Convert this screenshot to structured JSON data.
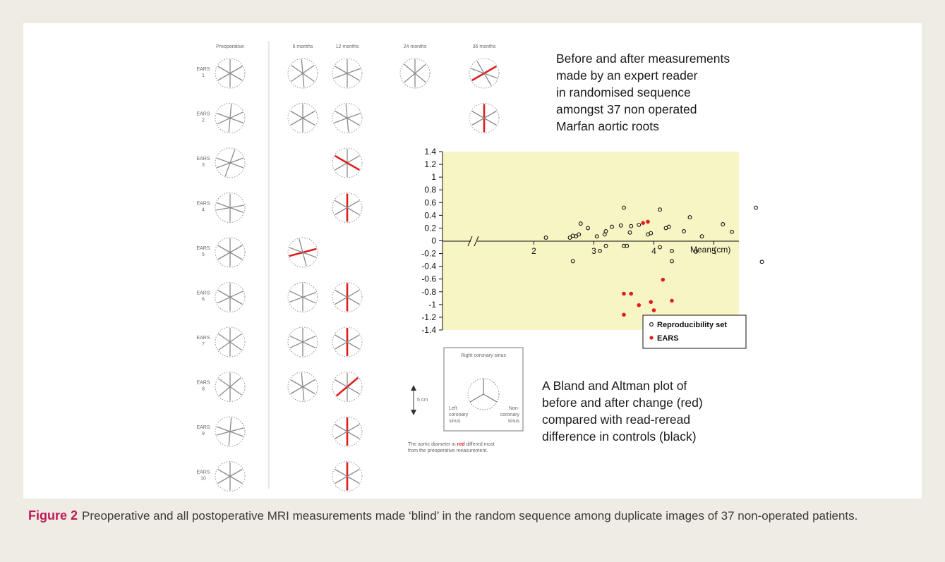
{
  "colors": {
    "highlight": "#dd1e1e",
    "spoke": "#8a8a8a",
    "plot_bg": "#f8f5c4",
    "accent": "#c0185a"
  },
  "grid": {
    "column_headers": [
      "Preoperative",
      "6 months",
      "12 months",
      "24 months",
      "36 months"
    ],
    "patients": [
      {
        "label_top": "EARS",
        "label_num": "1",
        "cells": [
          {
            "angles": [
              90,
              30,
              150
            ],
            "red": -1
          },
          {
            "angles": [
              95,
              35,
              145
            ],
            "red": -1
          },
          {
            "angles": [
              90,
              20,
              150
            ],
            "red": -1
          },
          {
            "angles": [
              90,
              40,
              140
            ],
            "red": -1
          },
          {
            "angles": [
              120,
              30,
              160
            ],
            "red": 1
          }
        ]
      },
      {
        "label_top": "EARS",
        "label_num": "2",
        "cells": [
          {
            "angles": [
              85,
              25,
              160
            ],
            "red": -1
          },
          {
            "angles": [
              90,
              30,
              150
            ],
            "red": -1
          },
          {
            "angles": [
              95,
              20,
              150
            ],
            "red": -1
          },
          null,
          {
            "angles": [
              90,
              30,
              150
            ],
            "red": 0
          }
        ]
      },
      {
        "label_top": "EARS",
        "label_num": "3",
        "cells": [
          {
            "angles": [
              70,
              20,
              160
            ],
            "red": -1
          },
          null,
          {
            "angles": [
              90,
              30,
              150
            ],
            "red": 2
          },
          null,
          null
        ]
      },
      {
        "label_top": "EARS",
        "label_num": "4",
        "cells": [
          {
            "angles": [
              90,
              10,
              160
            ],
            "red": -1
          },
          null,
          {
            "angles": [
              90,
              30,
              150
            ],
            "red": 0
          },
          null,
          null
        ]
      },
      {
        "label_top": "EARS",
        "label_num": "5",
        "cells": [
          {
            "angles": [
              90,
              30,
              150
            ],
            "red": -1
          },
          {
            "angles": [
              105,
              15,
              160
            ],
            "red": 1
          },
          null,
          null,
          null
        ]
      },
      {
        "label_top": "EARS",
        "label_num": "6",
        "cells": [
          {
            "angles": [
              90,
              25,
              150
            ],
            "red": -1
          },
          {
            "angles": [
              90,
              20,
              155
            ],
            "red": -1
          },
          {
            "angles": [
              90,
              30,
              150
            ],
            "red": 0
          },
          null,
          null
        ]
      },
      {
        "label_top": "EARS",
        "label_num": "7",
        "cells": [
          {
            "angles": [
              90,
              35,
              145
            ],
            "red": -1
          },
          {
            "angles": [
              90,
              25,
              155
            ],
            "red": -1
          },
          {
            "angles": [
              90,
              30,
              150
            ],
            "red": 0
          },
          null,
          null
        ]
      },
      {
        "label_top": "EARS",
        "label_num": "8",
        "cells": [
          {
            "angles": [
              90,
              40,
              145
            ],
            "red": -1
          },
          {
            "angles": [
              95,
              30,
              150
            ],
            "red": -1
          },
          {
            "angles": [
              90,
              40,
              150
            ],
            "red": 1
          },
          null,
          null
        ]
      },
      {
        "label_top": "EARS",
        "label_num": "9",
        "cells": [
          {
            "angles": [
              85,
              15,
              160
            ],
            "red": -1
          },
          null,
          {
            "angles": [
              90,
              30,
              150
            ],
            "red": 0
          },
          null,
          null
        ]
      },
      {
        "label_top": "EARS",
        "label_num": "10",
        "cells": [
          {
            "angles": [
              90,
              30,
              150
            ],
            "red": -1
          },
          null,
          {
            "angles": [
              90,
              30,
              150
            ],
            "red": 0
          },
          null,
          null
        ]
      }
    ]
  },
  "text_top": [
    "Before and after measurements",
    "made by an expert reader",
    "in randomised sequence",
    "amongst 37 non operated",
    "Marfan aortic roots"
  ],
  "text_bottom": [
    "A Bland and Altman plot of",
    "before and after change (red)",
    "compared with read-reread",
    "difference in controls (black)"
  ],
  "scale_box": {
    "top_label": "Right coronary sinus",
    "left_label": [
      "Left",
      "coronary",
      "sinus"
    ],
    "right_label": [
      "Non-",
      "coronary",
      "sinus"
    ],
    "scale_label": "5 cm",
    "note_line1_pre": "The aortic diameter in ",
    "note_line1_red": "red",
    "note_line1_post": " differed most",
    "note_line2": "from the preoperative measurement."
  },
  "chart_data": {
    "type": "scatter",
    "xlabel": "Mean (cm)",
    "ylabel": "",
    "x_ticks": [
      2,
      3,
      4,
      5
    ],
    "xlim": [
      1.3,
      6.0
    ],
    "axis_break": true,
    "ylim": [
      -1.4,
      1.4
    ],
    "y_ticks": [
      1.4,
      1.2,
      1,
      0.8,
      0.6,
      0.4,
      0.2,
      0,
      -0.2,
      -0.4,
      -0.6,
      -0.8,
      -1,
      -1.2,
      -1.4
    ],
    "legend_position": "bottom-right",
    "series": [
      {
        "name": "Reproducibility set",
        "marker": "open-circle",
        "color": "#111111",
        "points": [
          [
            2.2,
            0.05
          ],
          [
            2.6,
            0.05
          ],
          [
            2.65,
            0.08
          ],
          [
            2.7,
            0.07
          ],
          [
            2.75,
            0.1
          ],
          [
            2.78,
            0.27
          ],
          [
            2.9,
            0.2
          ],
          [
            2.65,
            -0.32
          ],
          [
            3.05,
            0.07
          ],
          [
            3.1,
            -0.16
          ],
          [
            3.2,
            0.15
          ],
          [
            3.18,
            0.1
          ],
          [
            3.2,
            -0.08
          ],
          [
            3.3,
            0.22
          ],
          [
            3.45,
            0.24
          ],
          [
            3.5,
            0.52
          ],
          [
            3.5,
            -0.08
          ],
          [
            3.55,
            -0.08
          ],
          [
            3.6,
            0.13
          ],
          [
            3.62,
            0.23
          ],
          [
            3.75,
            0.25
          ],
          [
            3.9,
            0.1
          ],
          [
            3.95,
            0.12
          ],
          [
            4.1,
            0.49
          ],
          [
            4.1,
            -0.1
          ],
          [
            4.2,
            0.2
          ],
          [
            4.25,
            0.22
          ],
          [
            4.3,
            -0.16
          ],
          [
            4.3,
            -0.32
          ],
          [
            4.5,
            0.15
          ],
          [
            4.6,
            0.37
          ],
          [
            4.7,
            -0.17
          ],
          [
            4.8,
            0.07
          ],
          [
            5.15,
            0.26
          ],
          [
            5.3,
            0.14
          ],
          [
            5.7,
            0.52
          ],
          [
            5.8,
            -0.33
          ]
        ]
      },
      {
        "name": "EARS",
        "marker": "filled-circle",
        "color": "#dd1e1e",
        "points": [
          [
            3.82,
            0.28
          ],
          [
            3.9,
            0.3
          ],
          [
            3.5,
            -0.83
          ],
          [
            3.62,
            -0.83
          ],
          [
            3.75,
            -1.01
          ],
          [
            3.95,
            -0.96
          ],
          [
            4.0,
            -1.09
          ],
          [
            4.15,
            -0.61
          ],
          [
            4.3,
            -0.94
          ],
          [
            3.5,
            -1.16
          ]
        ]
      }
    ]
  }
}
